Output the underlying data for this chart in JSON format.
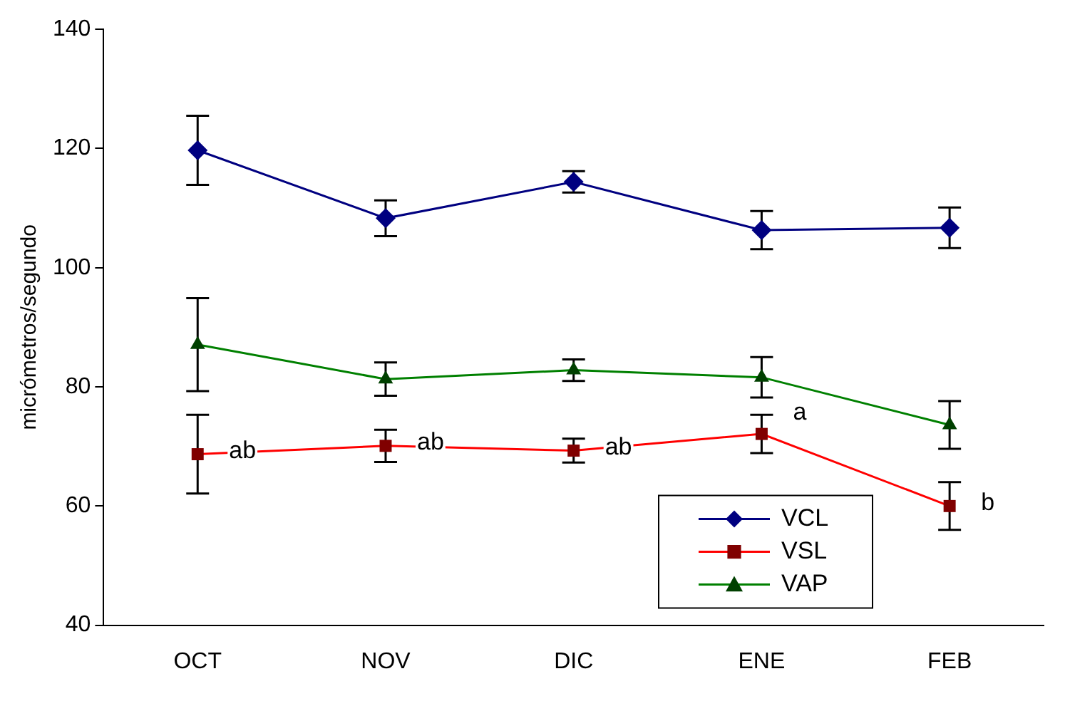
{
  "chart_data": {
    "type": "line",
    "ylabel": "micrómetros/segundo",
    "categories": [
      "OCT",
      "NOV",
      "DIC",
      "ENE",
      "FEB"
    ],
    "series": [
      {
        "name": "VCL",
        "color": "#000080",
        "marker": "diamond",
        "values": [
          119.7,
          108.3,
          114.4,
          106.3,
          106.7
        ],
        "errors": [
          5.8,
          3,
          1.8,
          3.2,
          3.4
        ]
      },
      {
        "name": "VSL",
        "color": "#ff0000",
        "marker": "square",
        "values": [
          68.7,
          70.1,
          69.3,
          72.1,
          60
        ],
        "errors": [
          6.6,
          2.7,
          2,
          3.2,
          4
        ]
      },
      {
        "name": "VAP",
        "color": "#008000",
        "marker": "triangle",
        "values": [
          87.1,
          81.3,
          82.8,
          81.6,
          73.6
        ],
        "errors": [
          7.8,
          2.8,
          1.8,
          3.4,
          4
        ]
      }
    ],
    "ylim": [
      40,
      140
    ],
    "yticks": [
      40,
      60,
      80,
      100,
      120,
      140
    ],
    "grid": false,
    "legend": "bottom right",
    "annotations": [
      {
        "text": "ab",
        "x": "OCT",
        "y": 68.7
      },
      {
        "text": "ab",
        "x": "NOV",
        "y": 70.1
      },
      {
        "text": "ab",
        "x": "DIC",
        "y": 69.3
      },
      {
        "text": "a",
        "x": "ENE",
        "y": 75.2
      },
      {
        "text": "b",
        "x": "FEB",
        "y": 60
      }
    ]
  }
}
